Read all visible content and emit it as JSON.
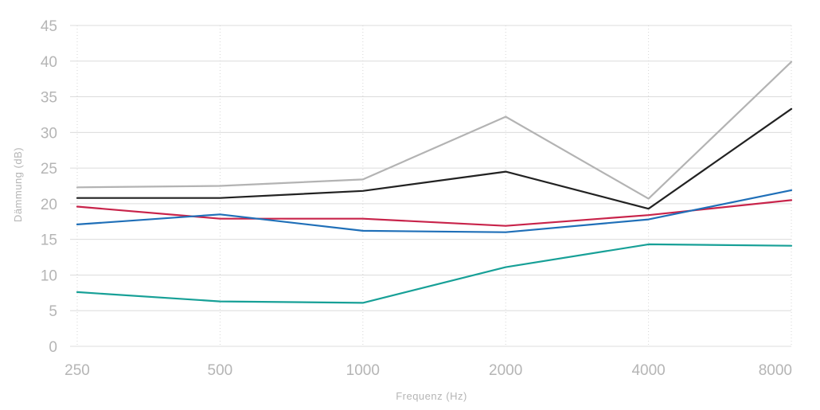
{
  "chart_data": {
    "type": "line",
    "xlabel": "Frequenz (Hz)",
    "ylabel": "Dämmung (dB)",
    "categories": [
      "250",
      "500",
      "1000",
      "2000",
      "4000",
      "8000"
    ],
    "y_ticks": [
      "0",
      "5",
      "10",
      "15",
      "20",
      "25",
      "30",
      "35",
      "40",
      "45"
    ],
    "ylim": [
      0,
      45
    ],
    "grid": "horizontal",
    "legend": "none",
    "series": [
      {
        "color": "#b3b3b3",
        "values": [
          22.3,
          22.5,
          23.4,
          32.2,
          20.7,
          39.9
        ]
      },
      {
        "color": "#222222",
        "values": [
          20.8,
          20.8,
          21.8,
          24.5,
          19.3,
          33.3
        ]
      },
      {
        "color": "#c8234a",
        "values": [
          19.6,
          17.9,
          17.9,
          16.9,
          18.4,
          20.5
        ]
      },
      {
        "color": "#1f6fb8",
        "values": [
          17.1,
          18.5,
          16.2,
          16.0,
          17.8,
          21.9
        ]
      },
      {
        "color": "#17a097",
        "values": [
          7.6,
          6.3,
          6.1,
          11.1,
          14.3,
          14.1
        ]
      }
    ]
  }
}
